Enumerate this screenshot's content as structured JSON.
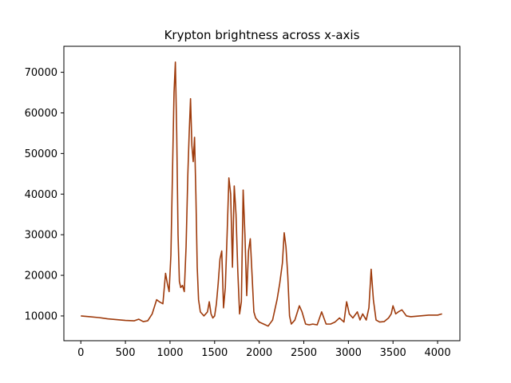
{
  "chart_data": {
    "type": "line",
    "title": "Krypton brightness across x-axis",
    "xlabel": "",
    "ylabel": "",
    "xlim": [
      -190,
      4250
    ],
    "ylim": [
      3900,
      76400
    ],
    "xticks": [
      0,
      500,
      1000,
      1500,
      2000,
      2500,
      3000,
      3500,
      4000
    ],
    "xtick_labels": [
      "0",
      "500",
      "1000",
      "1500",
      "2000",
      "2500",
      "3000",
      "3500",
      "4000"
    ],
    "yticks": [
      10000,
      20000,
      30000,
      40000,
      50000,
      60000,
      70000
    ],
    "ytick_labels": [
      "10000",
      "20000",
      "30000",
      "40000",
      "50000",
      "60000",
      "70000"
    ],
    "grid": false,
    "legend": "none",
    "series": [
      {
        "color": "#9e3a0b",
        "x": [
          0,
          100,
          200,
          300,
          400,
          500,
          600,
          650,
          700,
          750,
          800,
          850,
          880,
          920,
          950,
          970,
          990,
          1010,
          1030,
          1045,
          1060,
          1075,
          1090,
          1105,
          1120,
          1140,
          1160,
          1180,
          1200,
          1215,
          1230,
          1245,
          1260,
          1275,
          1290,
          1305,
          1320,
          1340,
          1360,
          1380,
          1400,
          1420,
          1440,
          1460,
          1480,
          1500,
          1520,
          1540,
          1560,
          1580,
          1600,
          1620,
          1640,
          1660,
          1680,
          1700,
          1720,
          1740,
          1760,
          1780,
          1800,
          1820,
          1840,
          1860,
          1880,
          1900,
          1920,
          1940,
          1960,
          1980,
          2000,
          2050,
          2100,
          2150,
          2200,
          2230,
          2260,
          2280,
          2300,
          2320,
          2340,
          2360,
          2400,
          2450,
          2480,
          2520,
          2560,
          2600,
          2650,
          2700,
          2750,
          2800,
          2850,
          2900,
          2950,
          2980,
          3010,
          3050,
          3100,
          3130,
          3160,
          3200,
          3230,
          3255,
          3280,
          3310,
          3350,
          3400,
          3450,
          3480,
          3500,
          3530,
          3560,
          3600,
          3650,
          3700,
          3800,
          3900,
          4000,
          4050
        ],
        "y": [
          10000,
          9800,
          9600,
          9300,
          9100,
          8900,
          8800,
          9200,
          8600,
          8800,
          10500,
          14000,
          13500,
          13000,
          20500,
          18000,
          16000,
          25000,
          48000,
          65000,
          72500,
          55000,
          30000,
          18500,
          17000,
          17500,
          16000,
          27000,
          45000,
          55000,
          63500,
          52000,
          48000,
          54000,
          40000,
          22000,
          14000,
          11000,
          10500,
          10000,
          10500,
          11000,
          13500,
          10500,
          9500,
          10000,
          13000,
          18000,
          24000,
          26000,
          12000,
          17000,
          30000,
          44000,
          40000,
          22000,
          42000,
          35000,
          21000,
          10500,
          13500,
          41000,
          30000,
          15000,
          26000,
          29000,
          20000,
          11000,
          9500,
          9000,
          8500,
          8000,
          7500,
          9000,
          14000,
          18000,
          23000,
          30500,
          27000,
          20000,
          10000,
          8000,
          9000,
          12500,
          11000,
          8000,
          7800,
          8000,
          7800,
          11000,
          8000,
          8000,
          8500,
          9500,
          8500,
          13500,
          10500,
          9500,
          11000,
          9000,
          10500,
          9000,
          12000,
          21500,
          14000,
          9000,
          8500,
          8600,
          9500,
          10500,
          12500,
          10500,
          11000,
          11500,
          10000,
          9800,
          10000,
          10200,
          10200,
          10500
        ]
      }
    ]
  }
}
